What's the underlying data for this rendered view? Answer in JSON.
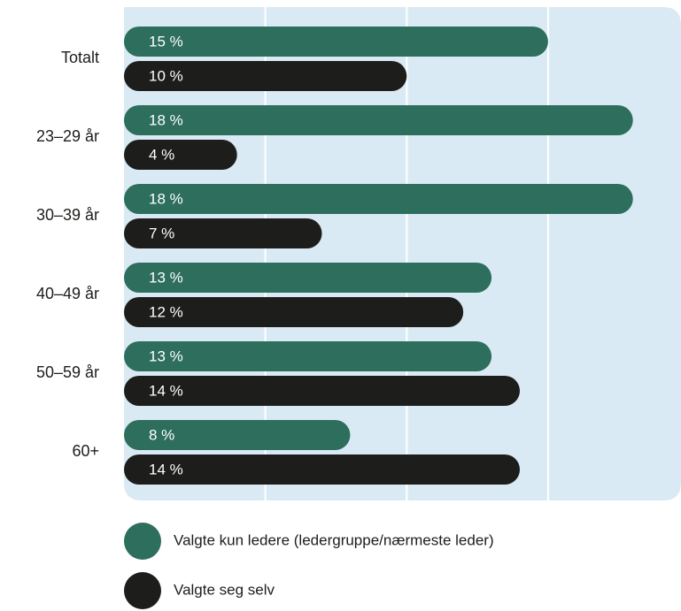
{
  "chart_data": {
    "type": "bar",
    "orientation": "horizontal",
    "categories": [
      "Totalt",
      "23–29 år",
      "30–39 år",
      "40–49 år",
      "50–59 år",
      "60+"
    ],
    "series": [
      {
        "name": "Valgte kun ledere (ledergruppe/nærmeste leder)",
        "color": "#2d6e5d",
        "values": [
          15,
          18,
          18,
          13,
          13,
          8
        ],
        "value_labels": [
          "15 %",
          "18 %",
          "18 %",
          "13 %",
          "13 %",
          "8 %"
        ]
      },
      {
        "name": "Valgte seg selv",
        "color": "#1d1d1b",
        "values": [
          10,
          4,
          7,
          12,
          14,
          14
        ],
        "value_labels": [
          "10 %",
          "4 %",
          "7 %",
          "12 %",
          "14 %",
          "14 %"
        ]
      }
    ],
    "xlim": [
      0,
      19.7
    ],
    "xticks": [
      5,
      10,
      15
    ],
    "grid": true,
    "legend": "bottom"
  }
}
